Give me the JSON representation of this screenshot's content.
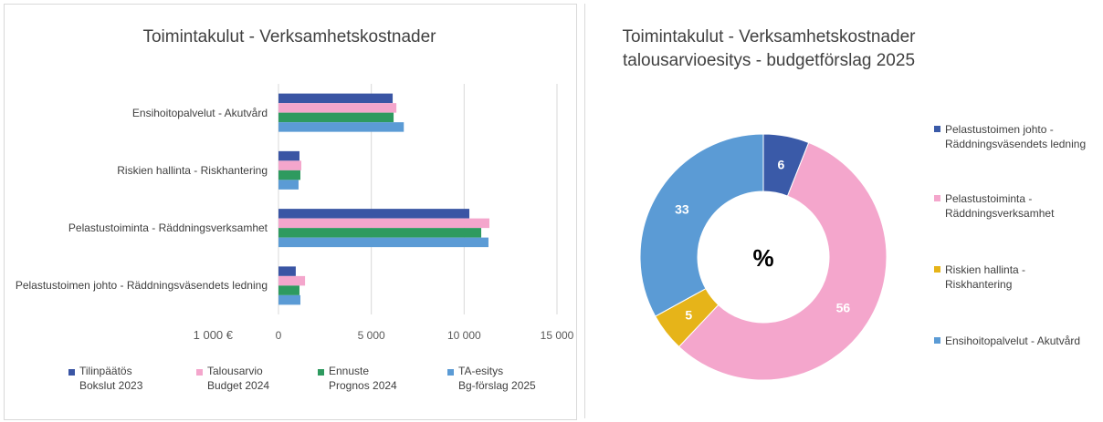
{
  "chart_data": [
    {
      "type": "hbar",
      "title": "Toimintakulut - Verksamhetskostnader",
      "xlabel": "1 000 €",
      "categories": [
        "Ensihoitopalvelut - Akutvård",
        "Riskien hallinta - Riskhantering",
        "Pelastustoiminta - Räddningsverksamhet",
        "Pelastustoimen johto - Räddningsväsendets ledning"
      ],
      "series": [
        {
          "name": "Tilinpäätös\nBokslut 2023",
          "color": "#3a55a4",
          "values": [
            6150,
            1130,
            10280,
            930
          ]
        },
        {
          "name": "Talousarvio\nBudget 2024",
          "color": "#f4a6cc",
          "values": [
            6350,
            1230,
            11360,
            1430
          ]
        },
        {
          "name": "Ennuste\nPrognos 2024",
          "color": "#2e9a5f",
          "values": [
            6200,
            1180,
            10920,
            1130
          ]
        },
        {
          "name": "TA-esitys\nBg-förslag 2025",
          "color": "#5b9bd5",
          "values": [
            6750,
            1080,
            11310,
            1180
          ]
        }
      ],
      "xlim": [
        0,
        15000
      ],
      "xticks": [
        0,
        {
          "value": 5000,
          "label": "5 000"
        },
        {
          "value": 10000,
          "label": "10 000"
        },
        {
          "value": 15000,
          "label": "15 000"
        }
      ],
      "grid": true
    },
    {
      "type": "donut",
      "title": "Toimintakulut - Verksamhetskostnader\ntalousarvioesitys - budgetförslag 2025",
      "center_label": "%",
      "categories": [
        "Pelastustoimen johto -\nRäddningsväsendets ledning",
        "Pelastustoiminta -\nRäddningsverksamhet",
        "Riskien hallinta -\nRiskhantering",
        "Ensihoitopalvelut - Akutvård"
      ],
      "values": [
        6,
        56,
        5,
        33
      ],
      "colors": [
        "#3a5aa8",
        "#f4a6cc",
        "#e6b419",
        "#5b9bd5"
      ]
    }
  ]
}
